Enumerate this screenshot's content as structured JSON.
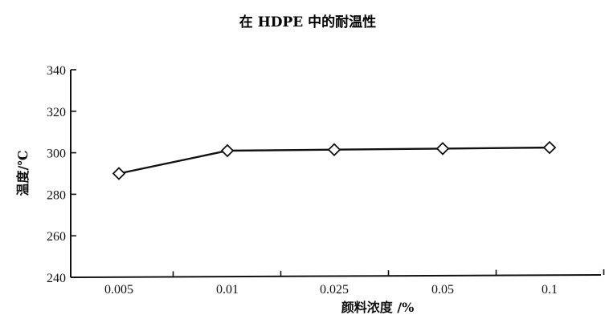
{
  "chart_data": {
    "type": "line",
    "title": "在 HDPE 中的耐温性",
    "xlabel": "颜料浓度 /%",
    "ylabel": "温度/℃",
    "categories": [
      "0.005",
      "0.01",
      "0.025",
      "0.05",
      "0.1"
    ],
    "series": [
      {
        "values": [
          290,
          301,
          301.5,
          302,
          302.5
        ],
        "marker": "diamond-open",
        "color": "#111111"
      }
    ],
    "ylim": [
      240,
      340
    ],
    "yticks": [
      240,
      260,
      280,
      300,
      320,
      340
    ],
    "grid": false,
    "legend": "none"
  }
}
